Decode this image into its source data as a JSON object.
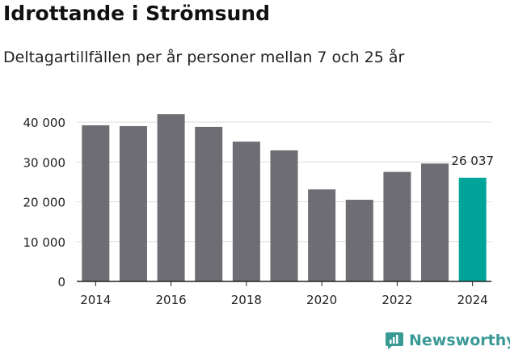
{
  "title": "Idrottande i Strömsund",
  "subtitle": "Deltagartillfällen per år personer mellan 7 och 25 år",
  "brand": {
    "name": "Newsworthy",
    "icon": "newsworthy-logo-icon",
    "color": "#3a9a96"
  },
  "colors": {
    "bar": "#6e6d73",
    "highlight": "#00a499",
    "grid": "#dddddd"
  },
  "chart_data": {
    "type": "bar",
    "title": "Idrottande i Strömsund",
    "subtitle": "Deltagartillfällen per år personer mellan 7 och 25 år",
    "categories": [
      "2014",
      "2015",
      "2016",
      "2017",
      "2018",
      "2019",
      "2020",
      "2021",
      "2022",
      "2023",
      "2024"
    ],
    "values": [
      39200,
      39000,
      42000,
      38800,
      35100,
      32900,
      23100,
      20500,
      27500,
      29600,
      26037
    ],
    "highlight_index": 10,
    "data_label": "26 037",
    "x_tick_labels": [
      "2014",
      "2016",
      "2018",
      "2020",
      "2022",
      "2024"
    ],
    "y_ticks": [
      0,
      10000,
      20000,
      30000,
      40000
    ],
    "y_tick_labels": [
      "0",
      "10 000",
      "20 000",
      "30 000",
      "40 000"
    ],
    "ylim": [
      0,
      42000
    ],
    "xlabel": "",
    "ylabel": "",
    "grid": true
  }
}
